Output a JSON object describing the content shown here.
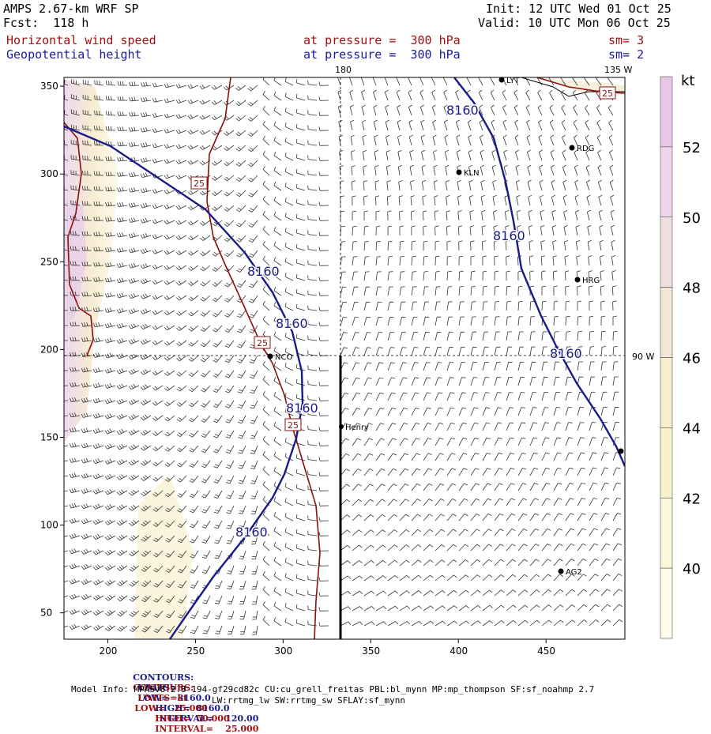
{
  "header": {
    "model": "AMPS 2.67-km WRF SP",
    "fcst": "Fcst:  118 h",
    "init": "Init: 12 UTC Wed 01 Oct 25",
    "valid": "Valid: 10 UTC Mon 06 Oct 25",
    "field1": "Horizontal wind speed",
    "field2": "Geopotential height",
    "level1": "at pressure =  300 hPa",
    "level2": "at pressure =  300 hPa",
    "sm1": "sm= 3",
    "sm2": "sm= 2"
  },
  "map": {
    "x_ticks": [
      "200",
      "250",
      "300",
      "350",
      "400",
      "450"
    ],
    "y_ticks": [
      "350",
      "300",
      "250",
      "200",
      "150",
      "100",
      "50"
    ],
    "lon_labels": {
      "top_180": "180",
      "top_135": "135 W",
      "right_90": "90 W"
    },
    "contour_label": "8160",
    "speed_label": "25",
    "stations": [
      "LYT",
      "RDG",
      "KLN",
      "HRG",
      "NCO",
      "Henry",
      "AG2"
    ]
  },
  "colorbar": {
    "unit": "kt",
    "labels": [
      "52",
      "50",
      "48",
      "46",
      "44",
      "42",
      "40"
    ],
    "colors": [
      "#e6c8e6",
      "#efd5ec",
      "#f0dede",
      "#f2e6d8",
      "#f6eecc",
      "#f7f2cc",
      "#fbf8dc",
      "#fefcea"
    ]
  },
  "footer": {
    "contours_label": "CONTOURS:",
    "line1_units": "UNITS=m",
    "line1_low": "LOW=   8160.0",
    "line1_high": "HIGH=  8160.0",
    "line1_int": "INTERVAL=    120.00",
    "line2_units": "UNITS=kt",
    "line2_low": "LOW=   25.000",
    "line2_high": "HIGH=  50.000",
    "line2_int": "INTERVAL=    25.000",
    "model_info": "Model Info: MPASv8.2.3-194-gf29cd82c CU:cu_grell_freitas PBL:bl_mynn MP:mp_thompson SF:sf_noahmp 2.7",
    "model_info2": "LW:rrtmg_lw SW:rrtmg_sw SFLAY:sf_mynn"
  }
}
